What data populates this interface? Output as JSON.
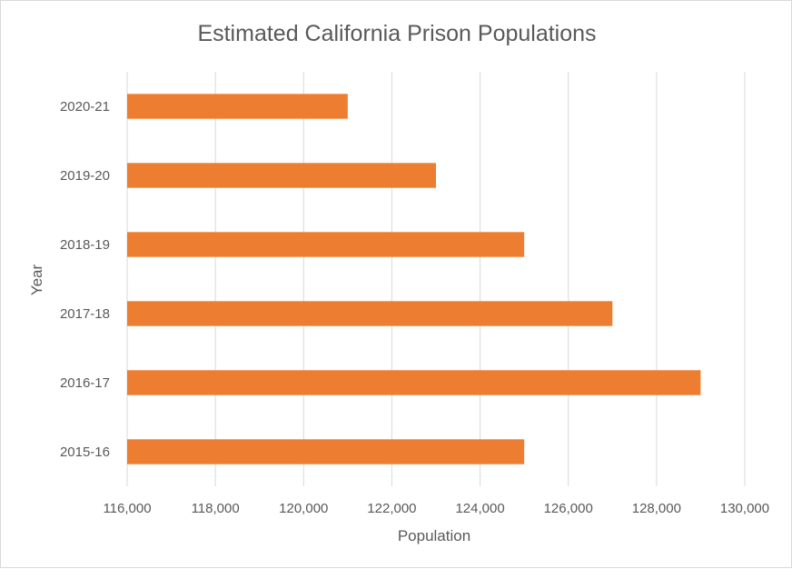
{
  "chart_data": {
    "type": "bar",
    "orientation": "horizontal",
    "title": "Estimated California Prison Populations",
    "xlabel": "Population",
    "ylabel": "Year",
    "categories": [
      "2015-16",
      "2016-17",
      "2017-18",
      "2018-19",
      "2019-20",
      "2020-21"
    ],
    "values": [
      125000,
      129000,
      127000,
      125000,
      123000,
      121000
    ],
    "xlim": [
      116000,
      130000
    ],
    "xticks": [
      116000,
      118000,
      120000,
      122000,
      124000,
      126000,
      128000,
      130000
    ],
    "xtick_labels": [
      "116,000",
      "118,000",
      "120,000",
      "122,000",
      "124,000",
      "126,000",
      "128,000",
      "130,000"
    ],
    "grid": "vertical",
    "legend": "none",
    "bar_color": "#ed7d31"
  }
}
